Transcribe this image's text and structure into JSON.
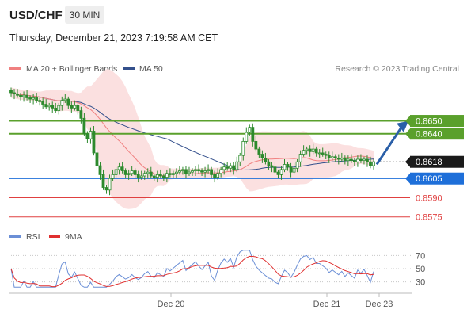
{
  "header": {
    "symbol": "USD/CHF",
    "timeframe": "30 MIN",
    "datetime": "Thursday, December 21, 2023 7:19:58 AM CET"
  },
  "legend": {
    "ma20_label": "MA 20 + Bollinger Bands",
    "ma50_label": "MA 50",
    "credit": "Research © 2023 Trading Central"
  },
  "colors": {
    "ma20": "#f08080",
    "ma50": "#34508c",
    "bands_fill": "#fbe0e0",
    "candle": "#2d8a2d",
    "resistance": "#5aa02c",
    "pivot": "#1e6fd9",
    "support": "#e04040",
    "arrow": "#2a5fa8",
    "rsi": "#6b8fd6",
    "rsi_ma": "#e03030"
  },
  "chart_data": {
    "type": "candlestick",
    "y_range": [
      0.8568,
      0.8685
    ],
    "current_price": {
      "label": "0.8618",
      "value": 0.8618
    },
    "levels": [
      {
        "label": "0.8650",
        "value": 0.865,
        "kind": "resistance"
      },
      {
        "label": "0.8640",
        "value": 0.864,
        "kind": "resistance"
      },
      {
        "label": "0.8605",
        "value": 0.8605,
        "kind": "pivot"
      },
      {
        "label": "0.8590",
        "value": 0.859,
        "kind": "support"
      },
      {
        "label": "0.8575",
        "value": 0.8575,
        "kind": "support"
      }
    ],
    "x_ticks": [
      "Dec 20",
      "Dec 21",
      "Dec 23"
    ],
    "rsi": {
      "legend": "RSI",
      "ma_legend": "9MA",
      "ticks": [
        "70",
        "50",
        "30"
      ],
      "range": [
        20,
        80
      ]
    },
    "closes": [
      0.8672,
      0.8671,
      0.867,
      0.8669,
      0.867,
      0.8668,
      0.8667,
      0.8668,
      0.8666,
      0.8665,
      0.8663,
      0.8661,
      0.8662,
      0.866,
      0.8658,
      0.8662,
      0.8666,
      0.8667,
      0.8662,
      0.866,
      0.8662,
      0.8658,
      0.8652,
      0.864,
      0.8636,
      0.8642,
      0.8625,
      0.8615,
      0.8608,
      0.8598,
      0.8596,
      0.8605,
      0.8608,
      0.8612,
      0.8614,
      0.8611,
      0.8608,
      0.8609,
      0.8611,
      0.8608,
      0.8606,
      0.8607,
      0.8609,
      0.861,
      0.8607,
      0.8606,
      0.8608,
      0.8607,
      0.8606,
      0.8609,
      0.8608,
      0.8609,
      0.861,
      0.8611,
      0.8612,
      0.8609,
      0.861,
      0.8611,
      0.8612,
      0.8611,
      0.861,
      0.8611,
      0.8612,
      0.8608,
      0.8606,
      0.8609,
      0.8612,
      0.8614,
      0.8613,
      0.8615,
      0.8612,
      0.8618,
      0.8623,
      0.8634,
      0.8641,
      0.8645,
      0.8634,
      0.8628,
      0.8624,
      0.8621,
      0.8618,
      0.8615,
      0.8614,
      0.861,
      0.8608,
      0.8612,
      0.8616,
      0.8614,
      0.861,
      0.8613,
      0.8618,
      0.8624,
      0.8627,
      0.8628,
      0.8626,
      0.8628,
      0.8625,
      0.8625,
      0.8624,
      0.8623,
      0.8621,
      0.8622,
      0.8621,
      0.862,
      0.8621,
      0.8619,
      0.862,
      0.8619,
      0.8618,
      0.862,
      0.8619,
      0.862,
      0.8618,
      0.8615,
      0.8618
    ]
  }
}
